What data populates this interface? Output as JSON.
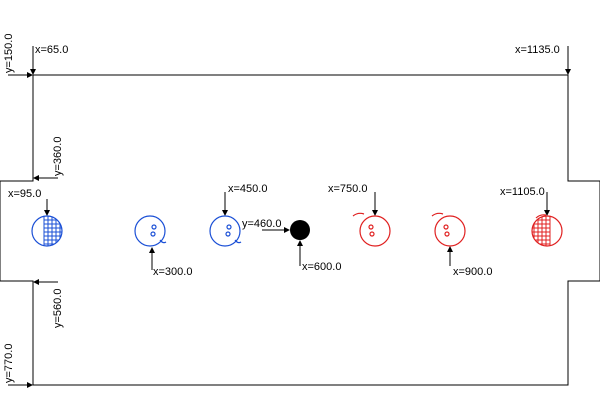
{
  "colors": {
    "blue_team": "#1a4fd6",
    "red_team": "#e02020",
    "ball": "#000000",
    "lines": "#000000"
  },
  "field": {
    "top_left_x_label": "x=65.0",
    "top_right_x_label": "x=1135.0",
    "top_y_label": "y=150.0",
    "goal_top_y_label": "y=360.0",
    "goal_bottom_y_label": "y=560.0",
    "bottom_y_label": "y=770.0"
  },
  "players": [
    {
      "team": "blue",
      "role": "goalkeeper",
      "label": "x=95.0",
      "icon": "netted-face-icon"
    },
    {
      "team": "blue",
      "role": "player",
      "label": "x=300.0",
      "icon": "face-icon"
    },
    {
      "team": "blue",
      "role": "player",
      "label": "x=450.0",
      "icon": "face-icon"
    },
    {
      "team": "red",
      "role": "player",
      "label": "x=750.0",
      "icon": "face-icon"
    },
    {
      "team": "red",
      "role": "player",
      "label": "x=900.0",
      "icon": "face-icon"
    },
    {
      "team": "red",
      "role": "goalkeeper",
      "label": "x=1105.0",
      "icon": "netted-face-icon"
    }
  ],
  "ball": {
    "x_label": "x=600.0",
    "y_label": "y=460.0"
  }
}
